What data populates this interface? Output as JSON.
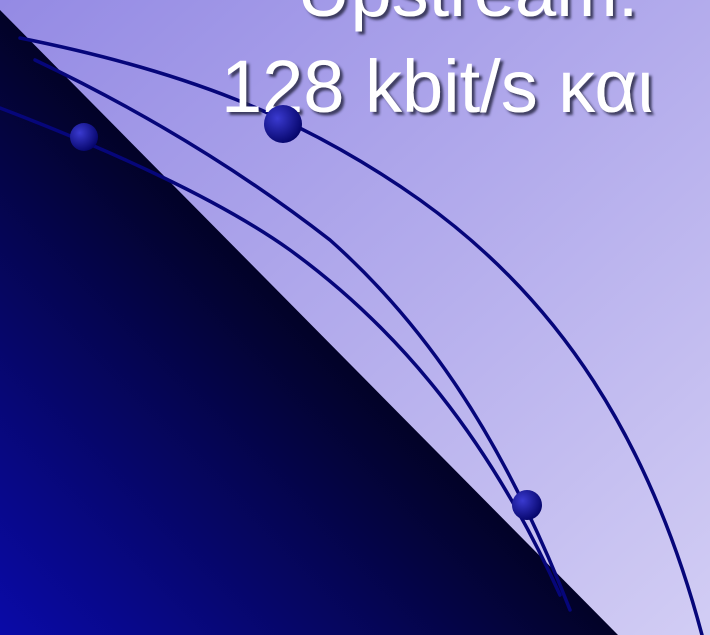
{
  "slide": {
    "title_line1": "Upstream:",
    "title_line2": "128 kbit/s  και"
  },
  "colors": {
    "background_top": "#9a90e6",
    "background_bottom": "#cdc7f2",
    "dark_triangle_light": "#000000",
    "dark_triangle_deep": "#0a0a9a",
    "curve_stroke": "#06067a",
    "node_fill": "#0a0a8a",
    "title_text": "#ffffff",
    "title_shadow": "#2a2a4a"
  }
}
